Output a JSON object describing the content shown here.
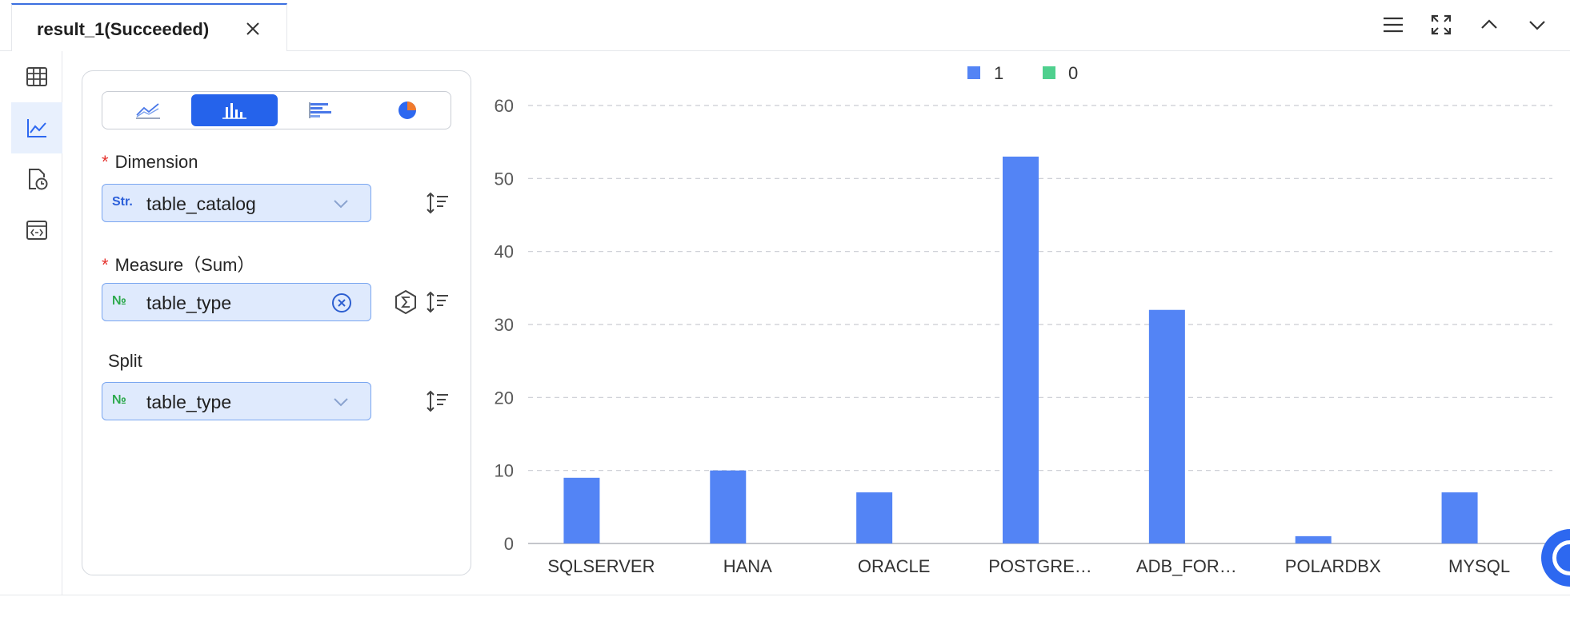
{
  "tab": {
    "title": "result_1(Succeeded)"
  },
  "config": {
    "dimension": {
      "label": "Dimension",
      "type_badge": "Str.",
      "value": "table_catalog"
    },
    "measure": {
      "label": "Measure（Sum）",
      "type_badge": "№",
      "value": "table_type"
    },
    "split": {
      "label": "Split",
      "type_badge": "№",
      "value": "table_type"
    },
    "chart_types": [
      "line",
      "bar",
      "horizontal-bar",
      "pie"
    ],
    "active_chart_type": "bar"
  },
  "colors": {
    "accent": "#2563eb",
    "series_1": "#5384f5",
    "series_0": "#4fd08e"
  },
  "chart_data": {
    "type": "bar",
    "categories": [
      "SQLSERVER",
      "HANA",
      "ORACLE",
      "POSTGRE…",
      "ADB_FOR…",
      "POLARDBX",
      "MYSQL"
    ],
    "series": [
      {
        "name": "1",
        "values": [
          9,
          10,
          7,
          53,
          32,
          1,
          7
        ]
      },
      {
        "name": "0",
        "values": [
          0,
          0,
          0,
          0,
          0,
          0,
          0
        ]
      }
    ],
    "ylim": [
      0,
      60
    ],
    "yticks": [
      "0",
      "10",
      "20",
      "30",
      "40",
      "50",
      "60"
    ],
    "grid": true,
    "legend": "top-center"
  }
}
